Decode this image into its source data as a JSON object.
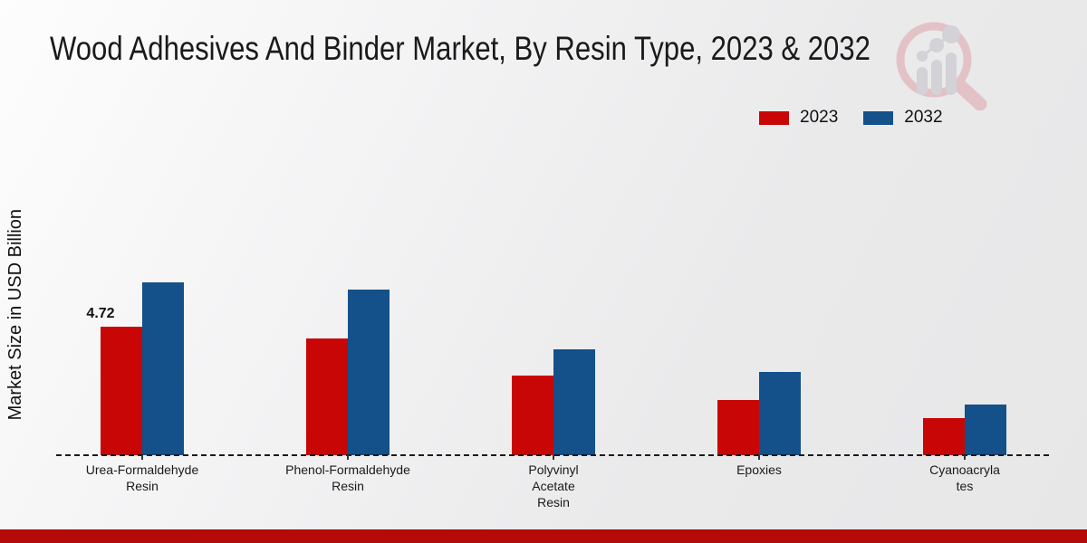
{
  "chart_data": {
    "type": "bar",
    "title": "Wood Adhesives And Binder Market, By Resin Type, 2023 & 2032",
    "ylabel": "Market Size in USD Billion",
    "xlabel": "",
    "categories": [
      "Urea-Formaldehyde Resin",
      "Phenol-Formaldehyde Resin",
      "Polyvinyl Acetate Resin",
      "Epoxies",
      "Cyanoacrylates"
    ],
    "category_label_lines": [
      [
        "Urea-Formaldehyde",
        "Resin"
      ],
      [
        "Phenol-Formaldehyde",
        "Resin"
      ],
      [
        "Polyvinyl",
        "Acetate",
        "Resin"
      ],
      [
        "Epoxies"
      ],
      [
        "Cyanoacryla",
        "tes"
      ]
    ],
    "series": [
      {
        "name": "2023",
        "color": "#c90606",
        "values": [
          4.72,
          4.29,
          2.93,
          2.03,
          1.36
        ]
      },
      {
        "name": "2032",
        "color": "#14508a",
        "values": [
          6.35,
          6.11,
          3.9,
          3.07,
          1.88
        ]
      }
    ],
    "value_labels": [
      {
        "series_index": 0,
        "category_index": 0,
        "text": "4.72"
      }
    ],
    "ylim": [
      0,
      7
    ],
    "grid": false,
    "legend_position": "top-right",
    "axis_line_style": "dashed"
  },
  "branding": {
    "logo_name": "magnifier-bar-chart-watermark",
    "footer_color": "#b40a0a",
    "logo_ring_color": "#e3c2c6",
    "logo_bar_color": "#d2d2d7"
  }
}
